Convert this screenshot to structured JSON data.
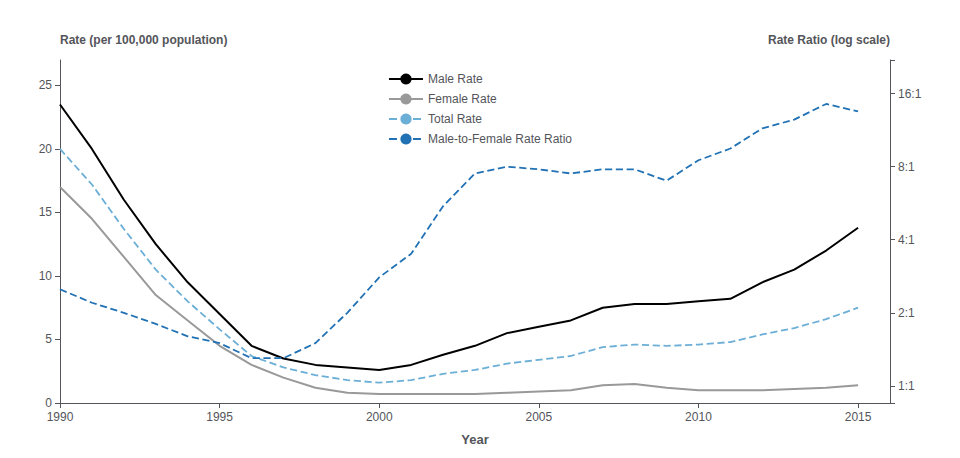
{
  "chart_data": {
    "type": "line",
    "x": [
      1990,
      1991,
      1992,
      1993,
      1994,
      1995,
      1996,
      1997,
      1998,
      1999,
      2000,
      2001,
      2002,
      2003,
      2004,
      2005,
      2006,
      2007,
      2008,
      2009,
      2010,
      2011,
      2012,
      2013,
      2014,
      2015
    ],
    "xlabel": "Year",
    "ylabel": "Rate (per 100,000 population)",
    "y2label": "Rate Ratio (log scale)",
    "xlim": [
      1990,
      2016
    ],
    "xticks": [
      1990,
      1995,
      2000,
      2005,
      2010,
      2015
    ],
    "ylim": [
      0,
      27
    ],
    "yticks": [
      0,
      5,
      10,
      15,
      20,
      25
    ],
    "y2lim": [
      0.85,
      22
    ],
    "y2ticks": [
      {
        "value": 1,
        "label": "1:1"
      },
      {
        "value": 2,
        "label": "2:1"
      },
      {
        "value": 4,
        "label": "4:1"
      },
      {
        "value": 8,
        "label": "8:1"
      },
      {
        "value": 16,
        "label": "16:1"
      }
    ],
    "log": "y2",
    "grid": false,
    "legend": "upper center",
    "series": [
      {
        "name": "Male Rate",
        "color": "#000000",
        "line_style": "solid",
        "values": [
          23.5,
          20.0,
          16.0,
          12.5,
          9.5,
          7.0,
          4.5,
          3.5,
          3.0,
          2.8,
          2.6,
          3.0,
          3.8,
          4.5,
          5.5,
          6.0,
          6.5,
          7.5,
          7.8,
          7.8,
          8.0,
          8.2,
          9.5,
          10.5,
          12.0,
          13.8
        ]
      },
      {
        "name": "Female Rate",
        "color": "#999999",
        "line_style": "solid",
        "values": [
          17.0,
          14.5,
          11.5,
          8.5,
          6.5,
          4.5,
          3.0,
          2.0,
          1.2,
          0.8,
          0.7,
          0.7,
          0.7,
          0.7,
          0.8,
          0.9,
          1.0,
          1.4,
          1.5,
          1.2,
          1.0,
          1.0,
          1.0,
          1.1,
          1.2,
          1.4
        ]
      },
      {
        "name": "Total Rate",
        "color": "#6baed6",
        "line_style": "dashed",
        "values": [
          20.0,
          17.2,
          13.7,
          10.5,
          8.0,
          5.8,
          3.7,
          2.8,
          2.2,
          1.8,
          1.6,
          1.8,
          2.3,
          2.6,
          3.1,
          3.4,
          3.7,
          4.4,
          4.6,
          4.5,
          4.6,
          4.8,
          5.4,
          5.9,
          6.6,
          7.5
        ]
      },
      {
        "name": "Male-to-Female Rate Ratio",
        "color": "#2171b5",
        "line_style": "dashed",
        "axis": "y2",
        "values": [
          2.5,
          2.2,
          2.0,
          1.8,
          1.6,
          1.5,
          1.3,
          1.3,
          1.5,
          2.0,
          2.8,
          3.5,
          5.5,
          7.5,
          8.0,
          7.8,
          7.5,
          7.8,
          7.8,
          7.0,
          8.5,
          9.5,
          11.5,
          12.5,
          14.5,
          13.5
        ]
      }
    ]
  }
}
